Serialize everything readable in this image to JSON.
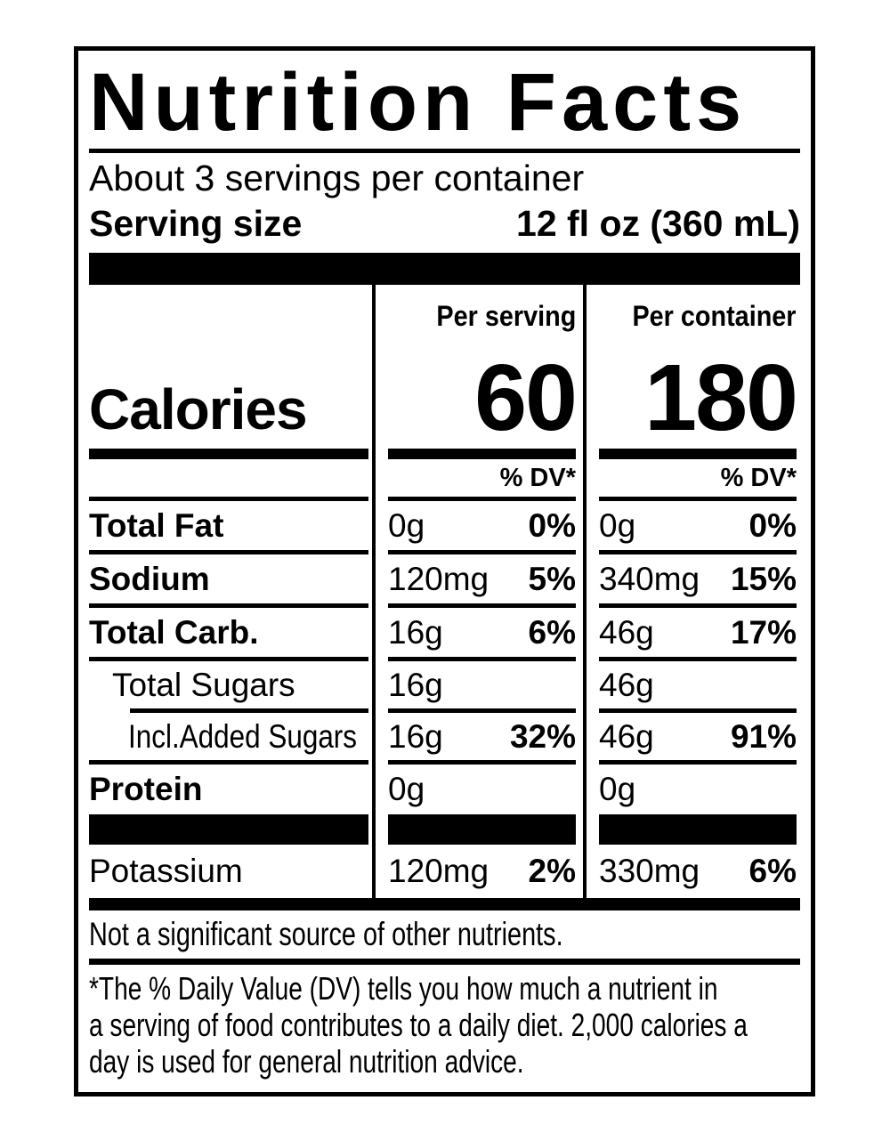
{
  "label": {
    "title": "Nutrition Facts",
    "servings_per_container": "About 3 servings per container",
    "serving_size": {
      "label": "Serving size",
      "value": "12 fl oz (360 mL)"
    },
    "calories": {
      "word": "Calories",
      "per_serving_header": "Per serving",
      "per_container_header": "Per container",
      "per_serving_value": "60",
      "per_container_value": "180",
      "dv_header_serving": "% DV*",
      "dv_header_container": "% DV*"
    },
    "nutrients": [
      {
        "name": "Total Fat",
        "ps_amount": "0g",
        "ps_dv": "0%",
        "pc_amount": "0g",
        "pc_dv": "0%"
      },
      {
        "name": "Sodium",
        "ps_amount": "120mg",
        "ps_dv": "5%",
        "pc_amount": "340mg",
        "pc_dv": "15%"
      },
      {
        "name": "Total Carb.",
        "ps_amount": "16g",
        "ps_dv": "6%",
        "pc_amount": "46g",
        "pc_dv": "17%"
      },
      {
        "name": "Total Sugars",
        "ps_amount": "16g",
        "ps_dv": "",
        "pc_amount": "46g",
        "pc_dv": ""
      },
      {
        "name": "Incl.Added Sugars",
        "ps_amount": "16g",
        "ps_dv": "32%",
        "pc_amount": "46g",
        "pc_dv": "91%"
      },
      {
        "name": "Protein",
        "ps_amount": "0g",
        "ps_dv": "",
        "pc_amount": "0g",
        "pc_dv": ""
      },
      {
        "name": "Potassium",
        "ps_amount": "120mg",
        "ps_dv": "2%",
        "pc_amount": "330mg",
        "pc_dv": "6%"
      }
    ],
    "not_significant": "Not a significant source of other nutrients.",
    "footnote_lines": [
      "*The % Daily Value (DV) tells you how much a nutrient in",
      "a serving of food contributes to a daily diet. 2,000 calories a",
      "day is used for general nutrition advice."
    ],
    "colors": {
      "ink": "#000000",
      "background": "#ffffff"
    }
  }
}
